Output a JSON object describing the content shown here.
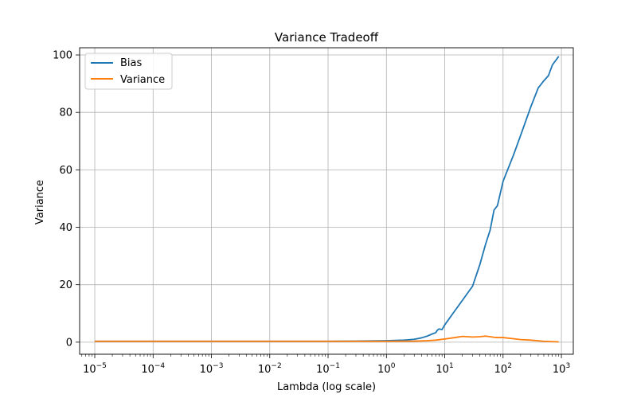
{
  "chart_data": {
    "type": "line",
    "title": "Variance Tradeoff",
    "xlabel": "Lambda (log scale)",
    "ylabel": "Variance",
    "xscale": "log",
    "xlim": [
      5.5e-06,
      1600
    ],
    "ylim": [
      -4.2,
      102.5
    ],
    "grid": true,
    "legend": {
      "position": "top-left"
    },
    "xticks": [
      {
        "value": 1e-05,
        "base": "10",
        "exp": "−5"
      },
      {
        "value": 0.0001,
        "base": "10",
        "exp": "−4"
      },
      {
        "value": 0.001,
        "base": "10",
        "exp": "−3"
      },
      {
        "value": 0.01,
        "base": "10",
        "exp": "−2"
      },
      {
        "value": 0.1,
        "base": "10",
        "exp": "−1"
      },
      {
        "value": 1,
        "base": "10",
        "exp": "0"
      },
      {
        "value": 10,
        "base": "10",
        "exp": "1"
      },
      {
        "value": 100,
        "base": "10",
        "exp": "2"
      },
      {
        "value": 1000,
        "base": "10",
        "exp": "3"
      }
    ],
    "yticks": [
      {
        "value": 0,
        "label": "0"
      },
      {
        "value": 20,
        "label": "20"
      },
      {
        "value": 40,
        "label": "40"
      },
      {
        "value": 60,
        "label": "60"
      },
      {
        "value": 80,
        "label": "80"
      },
      {
        "value": 100,
        "label": "100"
      }
    ],
    "series": [
      {
        "name": "Bias",
        "color": "#1f77b4",
        "x": [
          1e-05,
          0.0001,
          0.001,
          0.01,
          0.1,
          0.3,
          1,
          2,
          3,
          4,
          5,
          6,
          7,
          7.5,
          8,
          9,
          10,
          15,
          20,
          30,
          40,
          50,
          60,
          70,
          80,
          100,
          150,
          200,
          300,
          400,
          500,
          600,
          700,
          900
        ],
        "y": [
          0.3,
          0.3,
          0.3,
          0.3,
          0.3,
          0.35,
          0.5,
          0.7,
          1.0,
          1.5,
          2.1,
          2.8,
          3.3,
          4.2,
          4.6,
          4.4,
          6.0,
          11.0,
          14.5,
          19.5,
          27.0,
          34.0,
          39.0,
          46.0,
          47.5,
          56.0,
          65.0,
          72.0,
          82.0,
          88.5,
          91.0,
          92.8,
          96.5,
          99.5
        ]
      },
      {
        "name": "Variance",
        "color": "#ff7f0e",
        "x": [
          1e-05,
          0.0001,
          0.001,
          0.01,
          0.1,
          1,
          3,
          5,
          7,
          10,
          15,
          20,
          30,
          40,
          50,
          60,
          70,
          80,
          100,
          150,
          200,
          300,
          500,
          900
        ],
        "y": [
          0.3,
          0.3,
          0.3,
          0.3,
          0.3,
          0.3,
          0.35,
          0.5,
          0.7,
          1.1,
          1.6,
          2.0,
          1.8,
          1.9,
          2.1,
          1.9,
          1.7,
          1.6,
          1.6,
          1.2,
          0.9,
          0.7,
          0.3,
          0.1
        ]
      }
    ]
  }
}
